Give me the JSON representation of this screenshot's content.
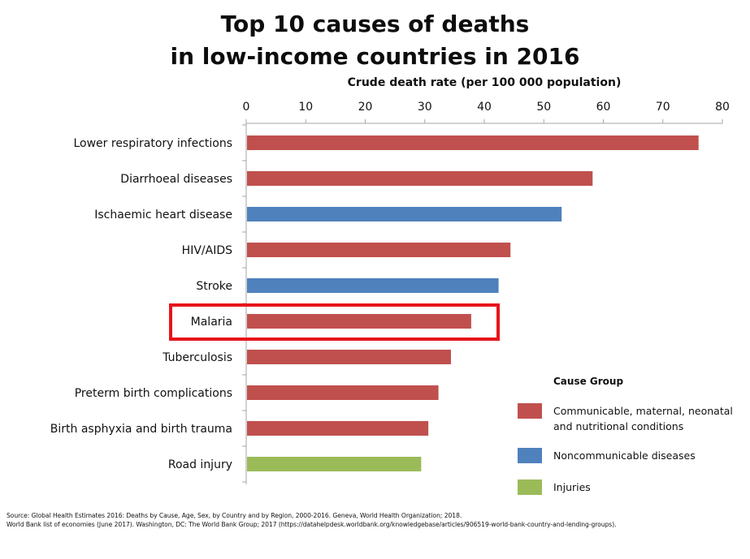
{
  "title_line1": "Top 10 causes of deaths",
  "title_line2": "in low-income countries in 2016",
  "chart_data": {
    "type": "bar",
    "orientation": "horizontal",
    "xlabel": "Crude death rate (per 100 000 population)",
    "xlim": [
      0,
      80
    ],
    "xticks": [
      0,
      10,
      20,
      30,
      40,
      50,
      60,
      70,
      80
    ],
    "axis_position": "top",
    "grid": false,
    "categories": [
      "Lower respiratory infections",
      "Diarrhoeal diseases",
      "Ischaemic heart disease",
      "HIV/AIDS",
      "Stroke",
      "Malaria",
      "Tuberculosis",
      "Preterm birth complications",
      "Birth asphyxia and birth trauma",
      "Road injury"
    ],
    "values": [
      76,
      58.2,
      53,
      44.4,
      42.4,
      37.8,
      34.4,
      32.3,
      30.6,
      29.4
    ],
    "groups": [
      "communicable",
      "communicable",
      "noncommunicable",
      "communicable",
      "noncommunicable",
      "communicable",
      "communicable",
      "communicable",
      "communicable",
      "injuries"
    ],
    "highlight": "Malaria",
    "highlight_color": "#e8141b",
    "legend": {
      "title": "Cause Group",
      "placement": "bottom-right",
      "items": [
        {
          "key": "communicable",
          "label": "Communicable, maternal, neonatal and nutritional conditions",
          "color": "#c0504d"
        },
        {
          "key": "noncommunicable",
          "label": "Noncommunicable diseases",
          "color": "#4f81bd"
        },
        {
          "key": "injuries",
          "label": "Injuries",
          "color": "#9bbb59"
        }
      ]
    }
  },
  "source_line1": "Source: Global Health Estimates 2016: Deaths by Cause, Age, Sex, by Country and by Region, 2000-2016. Geneva, World Health Organization; 2018.",
  "source_line2": "World Bank list of economies (June 2017). Washington, DC: The World Bank Group; 2017 (https://datahelpdesk.worldbank.org/knowledgebase/articles/906519-world-bank-country-and-lending-groups)."
}
